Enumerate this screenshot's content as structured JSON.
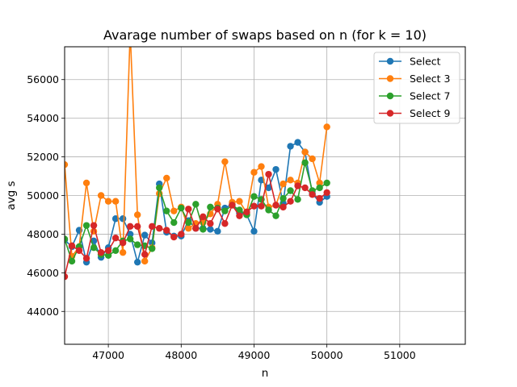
{
  "chart_data": {
    "type": "line",
    "title": "Avarage number of swaps based on n (for k = 10)",
    "xlabel": "n",
    "ylabel": "avg s",
    "xlim": [
      46400,
      51900
    ],
    "ylim": [
      42300,
      57700
    ],
    "xticks": [
      47000,
      48000,
      49000,
      50000,
      51000
    ],
    "yticks": [
      44000,
      46000,
      48000,
      50000,
      52000,
      54000,
      56000
    ],
    "grid": true,
    "legend_position": "top-right",
    "x": [
      46400,
      46500,
      46600,
      46700,
      46800,
      46900,
      47000,
      47100,
      47200,
      47300,
      47400,
      47500,
      47600,
      47700,
      47800,
      47900,
      48000,
      48100,
      48200,
      48300,
      48400,
      48500,
      48600,
      48700,
      48800,
      48900,
      49000,
      49100,
      49200,
      49300,
      49400,
      49500,
      49600,
      49700,
      49800,
      49900,
      50000
    ],
    "series": [
      {
        "name": "Select",
        "color": "#1f77b4",
        "values": [
          47700,
          47350,
          48200,
          46550,
          47650,
          46800,
          47300,
          48800,
          48800,
          48000,
          46550,
          47950,
          47550,
          50600,
          48100,
          47900,
          47900,
          48700,
          48300,
          48300,
          48250,
          48150,
          49350,
          49550,
          49100,
          49000,
          48150,
          50800,
          50400,
          51350,
          49600,
          52550,
          52750,
          52250,
          50100,
          49650,
          49950
        ]
      },
      {
        "name": "Select 3",
        "color": "#ff7f0e",
        "values": [
          51600,
          46850,
          47350,
          50650,
          48150,
          50000,
          49700,
          49700,
          47050,
          58500,
          49000,
          46600,
          47300,
          50100,
          50900,
          49200,
          49400,
          48300,
          48550,
          48600,
          49050,
          49550,
          51750,
          49650,
          49700,
          49100,
          51200,
          51500,
          49400,
          49500,
          50600,
          50800,
          50650,
          52250,
          51900,
          50650,
          53550
        ]
      },
      {
        "name": "Select 7",
        "color": "#2ca02c",
        "values": [
          47750,
          46600,
          47350,
          48450,
          47300,
          46950,
          46900,
          47150,
          47650,
          47750,
          47450,
          47400,
          47250,
          50400,
          49200,
          48600,
          49350,
          48600,
          49550,
          48250,
          49400,
          49350,
          49200,
          49500,
          49250,
          49000,
          49950,
          49800,
          49250,
          48950,
          49850,
          50250,
          49800,
          51700,
          50250,
          50400,
          50650
        ]
      },
      {
        "name": "Select 9",
        "color": "#d62728",
        "values": [
          45800,
          47400,
          47150,
          46750,
          48450,
          47050,
          47150,
          47800,
          47550,
          48400,
          48400,
          46950,
          48400,
          48300,
          48200,
          47850,
          48000,
          49300,
          48300,
          48900,
          48550,
          49300,
          48550,
          49500,
          48950,
          49150,
          49450,
          49450,
          51100,
          49500,
          49400,
          49700,
          50500,
          50400,
          50050,
          49850,
          50150
        ]
      }
    ]
  }
}
